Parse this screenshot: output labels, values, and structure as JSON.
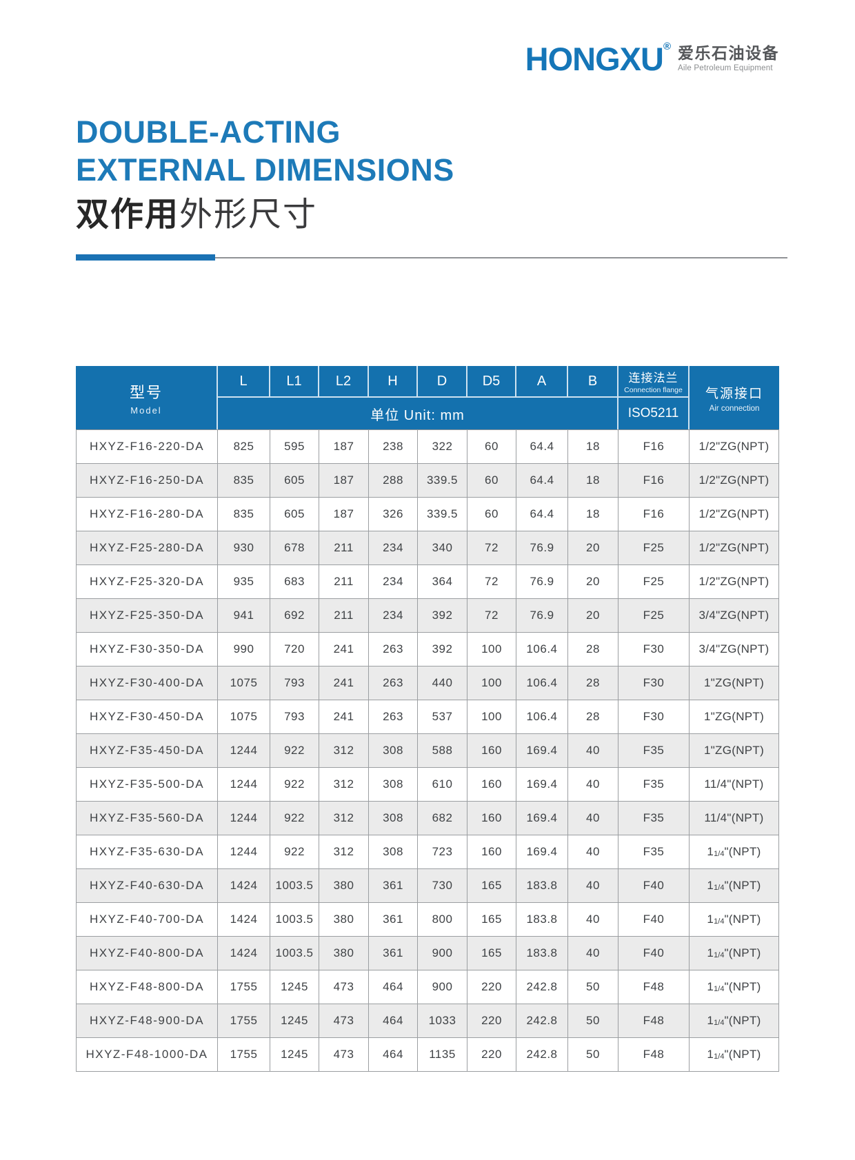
{
  "brand": {
    "logo_text": "HONGXU",
    "registered_mark": "®",
    "company_cn": "爱乐石油设备",
    "company_en": "Aile Petroleum Equipment",
    "logo_color": "#1576b8"
  },
  "title": {
    "line1": "DOUBLE-ACTING",
    "line2": "EXTERNAL DIMENSIONS",
    "subtitle_cn_bold": "双作用",
    "subtitle_cn_regular": "外形尺寸",
    "accent_color": "#1d7ab8",
    "rule_blue_color": "#1b72b4",
    "rule_gray_color": "#909295"
  },
  "table": {
    "header": {
      "model_cn": "型号",
      "model_en": "Model",
      "dim_columns": [
        "L",
        "L1",
        "L2",
        "H",
        "D",
        "D5",
        "A",
        "B"
      ],
      "unit_label": "单位 Unit:  mm",
      "flange_cn": "连接法兰",
      "flange_en": "Connection flange",
      "flange_standard": "ISO5211",
      "air_cn": "气源接口",
      "air_en": "Air connection",
      "header_bg": "#1471ae",
      "row_alt_bg": "#ebebeb"
    },
    "rows": [
      {
        "model": "HXYZ-F16-220-DA",
        "dims": [
          "825",
          "595",
          "187",
          "238",
          "322",
          "60",
          "64.4",
          "18"
        ],
        "flange": "F16",
        "air": "1/2\"ZG(NPT)"
      },
      {
        "model": "HXYZ-F16-250-DA",
        "dims": [
          "835",
          "605",
          "187",
          "288",
          "339.5",
          "60",
          "64.4",
          "18"
        ],
        "flange": "F16",
        "air": "1/2\"ZG(NPT)"
      },
      {
        "model": "HXYZ-F16-280-DA",
        "dims": [
          "835",
          "605",
          "187",
          "326",
          "339.5",
          "60",
          "64.4",
          "18"
        ],
        "flange": "F16",
        "air": "1/2\"ZG(NPT)"
      },
      {
        "model": "HXYZ-F25-280-DA",
        "dims": [
          "930",
          "678",
          "211",
          "234",
          "340",
          "72",
          "76.9",
          "20"
        ],
        "flange": "F25",
        "air": "1/2\"ZG(NPT)"
      },
      {
        "model": "HXYZ-F25-320-DA",
        "dims": [
          "935",
          "683",
          "211",
          "234",
          "364",
          "72",
          "76.9",
          "20"
        ],
        "flange": "F25",
        "air": "1/2\"ZG(NPT)"
      },
      {
        "model": "HXYZ-F25-350-DA",
        "dims": [
          "941",
          "692",
          "211",
          "234",
          "392",
          "72",
          "76.9",
          "20"
        ],
        "flange": "F25",
        "air": "3/4\"ZG(NPT)"
      },
      {
        "model": "HXYZ-F30-350-DA",
        "dims": [
          "990",
          "720",
          "241",
          "263",
          "392",
          "100",
          "106.4",
          "28"
        ],
        "flange": "F30",
        "air": "3/4\"ZG(NPT)"
      },
      {
        "model": "HXYZ-F30-400-DA",
        "dims": [
          "1075",
          "793",
          "241",
          "263",
          "440",
          "100",
          "106.4",
          "28"
        ],
        "flange": "F30",
        "air": "1\"ZG(NPT)"
      },
      {
        "model": "HXYZ-F30-450-DA",
        "dims": [
          "1075",
          "793",
          "241",
          "263",
          "537",
          "100",
          "106.4",
          "28"
        ],
        "flange": "F30",
        "air": "1\"ZG(NPT)"
      },
      {
        "model": "HXYZ-F35-450-DA",
        "dims": [
          "1244",
          "922",
          "312",
          "308",
          "588",
          "160",
          "169.4",
          "40"
        ],
        "flange": "F35",
        "air": "1\"ZG(NPT)"
      },
      {
        "model": "HXYZ-F35-500-DA",
        "dims": [
          "1244",
          "922",
          "312",
          "308",
          "610",
          "160",
          "169.4",
          "40"
        ],
        "flange": "F35",
        "air": "11/4\"(NPT)"
      },
      {
        "model": "HXYZ-F35-560-DA",
        "dims": [
          "1244",
          "922",
          "312",
          "308",
          "682",
          "160",
          "169.4",
          "40"
        ],
        "flange": "F35",
        "air": "11/4\"(NPT)"
      },
      {
        "model": "HXYZ-F35-630-DA",
        "dims": [
          "1244",
          "922",
          "312",
          "308",
          "723",
          "160",
          "169.4",
          "40"
        ],
        "flange": "F35",
        "air": {
          "pre": "1",
          "frac": "1/4",
          "post": "\"(NPT)"
        }
      },
      {
        "model": "HXYZ-F40-630-DA",
        "dims": [
          "1424",
          "1003.5",
          "380",
          "361",
          "730",
          "165",
          "183.8",
          "40"
        ],
        "flange": "F40",
        "air": {
          "pre": "1",
          "frac": "1/4",
          "post": "\"(NPT)"
        }
      },
      {
        "model": "HXYZ-F40-700-DA",
        "dims": [
          "1424",
          "1003.5",
          "380",
          "361",
          "800",
          "165",
          "183.8",
          "40"
        ],
        "flange": "F40",
        "air": {
          "pre": "1",
          "frac": "1/4",
          "post": "\"(NPT)"
        }
      },
      {
        "model": "HXYZ-F40-800-DA",
        "dims": [
          "1424",
          "1003.5",
          "380",
          "361",
          "900",
          "165",
          "183.8",
          "40"
        ],
        "flange": "F40",
        "air": {
          "pre": "1",
          "frac": "1/4",
          "post": "\"(NPT)"
        }
      },
      {
        "model": "HXYZ-F48-800-DA",
        "dims": [
          "1755",
          "1245",
          "473",
          "464",
          "900",
          "220",
          "242.8",
          "50"
        ],
        "flange": "F48",
        "air": {
          "pre": "1",
          "frac": "1/4",
          "post": "\"(NPT)"
        }
      },
      {
        "model": "HXYZ-F48-900-DA",
        "dims": [
          "1755",
          "1245",
          "473",
          "464",
          "1033",
          "220",
          "242.8",
          "50"
        ],
        "flange": "F48",
        "air": {
          "pre": "1",
          "frac": "1/4",
          "post": "\"(NPT)"
        }
      },
      {
        "model": "HXYZ-F48-1000-DA",
        "dims": [
          "1755",
          "1245",
          "473",
          "464",
          "1135",
          "220",
          "242.8",
          "50"
        ],
        "flange": "F48",
        "air": {
          "pre": "1",
          "frac": "1/4",
          "post": "\"(NPT)"
        }
      }
    ]
  }
}
